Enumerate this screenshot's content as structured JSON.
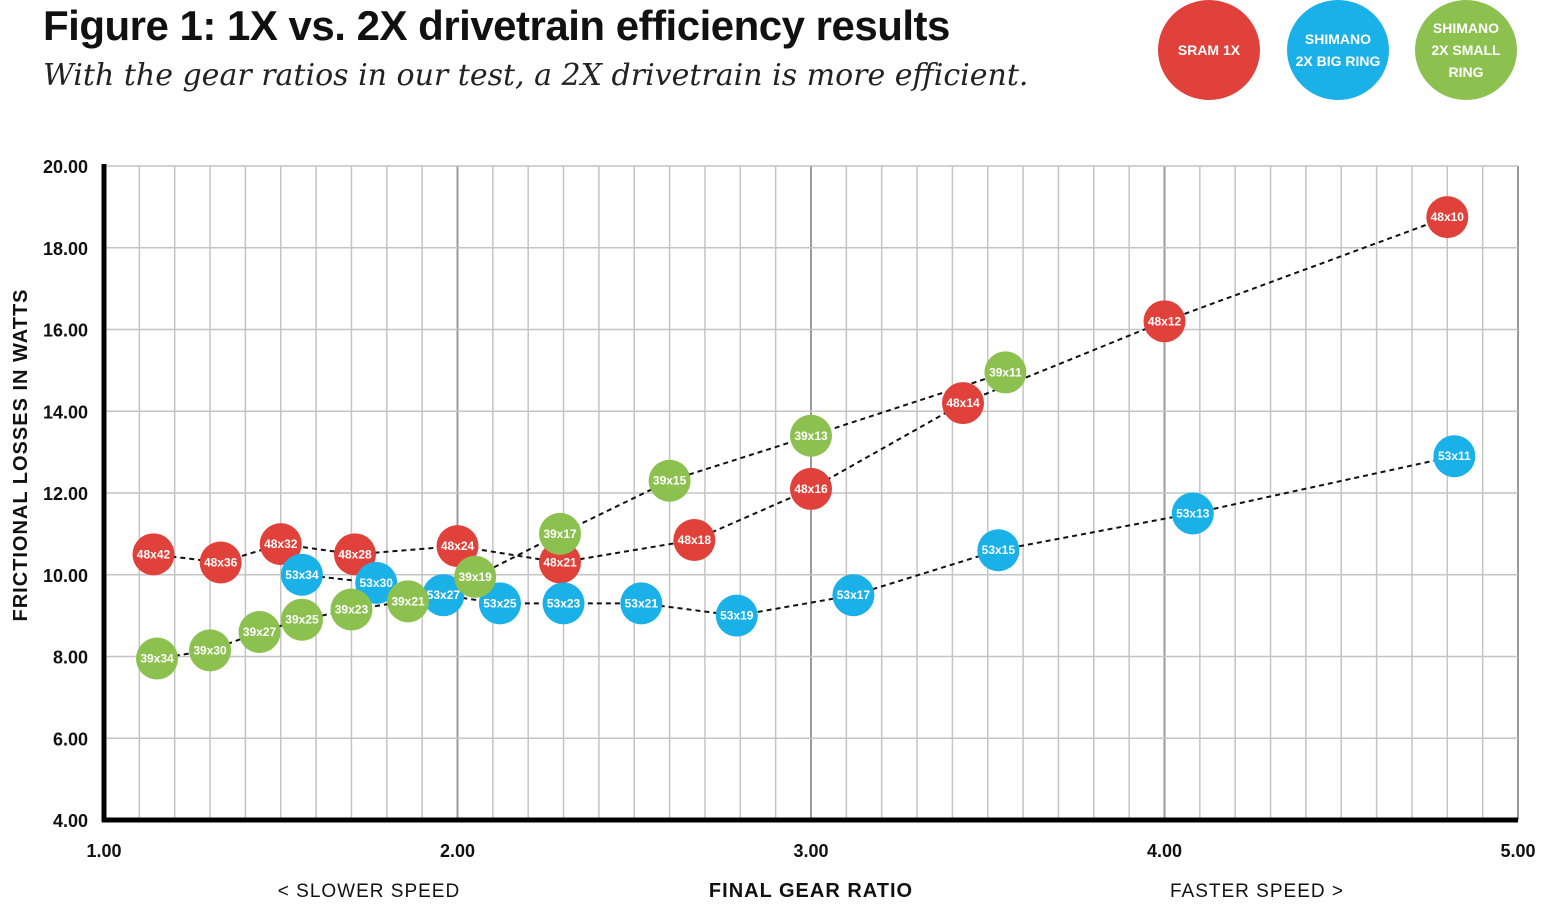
{
  "title": "Figure 1: 1X vs. 2X drivetrain efficiency results",
  "subtitle": "With the gear ratios in our test, a 2X drivetrain is more efficient.",
  "legend": [
    {
      "label": "SRAM 1X",
      "color": "#e0413a"
    },
    {
      "label": "SHIMANO\n2X BIG RING",
      "color": "#1ab0e8"
    },
    {
      "label": "SHIMANO\n2X SMALL\nRING",
      "color": "#8dc14f"
    }
  ],
  "chart_data": {
    "type": "scatter",
    "title": "Figure 1: 1X vs. 2X drivetrain efficiency results",
    "subtitle": "With the gear ratios in our test, a 2X drivetrain is more efficient.",
    "xlabel": "FINAL GEAR RATIO",
    "ylabel": "FRICTIONAL LOSSES IN WATTS",
    "x_hint_left": "< SLOWER SPEED",
    "x_hint_right": "FASTER SPEED >",
    "xlim": [
      1.0,
      5.0
    ],
    "ylim": [
      4.0,
      20.0
    ],
    "x_ticks": [
      "1.00",
      "2.00",
      "3.00",
      "4.00",
      "5.00"
    ],
    "y_ticks": [
      "4.00",
      "6.00",
      "8.00",
      "10.00",
      "12.00",
      "14.00",
      "16.00",
      "18.00",
      "20.00"
    ],
    "grid": true,
    "legend_position": "top-right",
    "series": [
      {
        "name": "SRAM 1X",
        "color": "#e0413a",
        "points": [
          {
            "label": "48x42",
            "x": 1.14,
            "y": 10.5
          },
          {
            "label": "48x36",
            "x": 1.33,
            "y": 10.3
          },
          {
            "label": "48x32",
            "x": 1.5,
            "y": 10.75
          },
          {
            "label": "48x28",
            "x": 1.71,
            "y": 10.5
          },
          {
            "label": "48x24",
            "x": 2.0,
            "y": 10.7
          },
          {
            "label": "48x21",
            "x": 2.29,
            "y": 10.3
          },
          {
            "label": "48x18",
            "x": 2.67,
            "y": 10.85
          },
          {
            "label": "48x16",
            "x": 3.0,
            "y": 12.1
          },
          {
            "label": "48x14",
            "x": 3.43,
            "y": 14.2
          },
          {
            "label": "48x12",
            "x": 4.0,
            "y": 16.2
          },
          {
            "label": "48x10",
            "x": 4.8,
            "y": 18.75
          }
        ]
      },
      {
        "name": "SHIMANO 2X BIG RING",
        "color": "#1ab0e8",
        "points": [
          {
            "label": "53x34",
            "x": 1.56,
            "y": 10.0
          },
          {
            "label": "53x30",
            "x": 1.77,
            "y": 9.8
          },
          {
            "label": "53x27",
            "x": 1.96,
            "y": 9.5
          },
          {
            "label": "53x25",
            "x": 2.12,
            "y": 9.3
          },
          {
            "label": "53x23",
            "x": 2.3,
            "y": 9.3
          },
          {
            "label": "53x21",
            "x": 2.52,
            "y": 9.3
          },
          {
            "label": "53x19",
            "x": 2.79,
            "y": 9.0
          },
          {
            "label": "53x17",
            "x": 3.12,
            "y": 9.5
          },
          {
            "label": "53x15",
            "x": 3.53,
            "y": 10.6
          },
          {
            "label": "53x13",
            "x": 4.08,
            "y": 11.5
          },
          {
            "label": "53x11",
            "x": 4.82,
            "y": 12.9
          }
        ]
      },
      {
        "name": "SHIMANO 2X SMALL RING",
        "color": "#8dc14f",
        "points": [
          {
            "label": "39x34",
            "x": 1.15,
            "y": 7.95
          },
          {
            "label": "39x30",
            "x": 1.3,
            "y": 8.15
          },
          {
            "label": "39x27",
            "x": 1.44,
            "y": 8.6
          },
          {
            "label": "39x25",
            "x": 1.56,
            "y": 8.9
          },
          {
            "label": "39x23",
            "x": 1.7,
            "y": 9.15
          },
          {
            "label": "39x21",
            "x": 1.86,
            "y": 9.35
          },
          {
            "label": "39x19",
            "x": 2.05,
            "y": 9.95
          },
          {
            "label": "39x17",
            "x": 2.29,
            "y": 11.0
          },
          {
            "label": "39x15",
            "x": 2.6,
            "y": 12.3
          },
          {
            "label": "39x13",
            "x": 3.0,
            "y": 13.4
          },
          {
            "label": "39x11",
            "x": 3.55,
            "y": 14.95
          }
        ]
      }
    ]
  }
}
